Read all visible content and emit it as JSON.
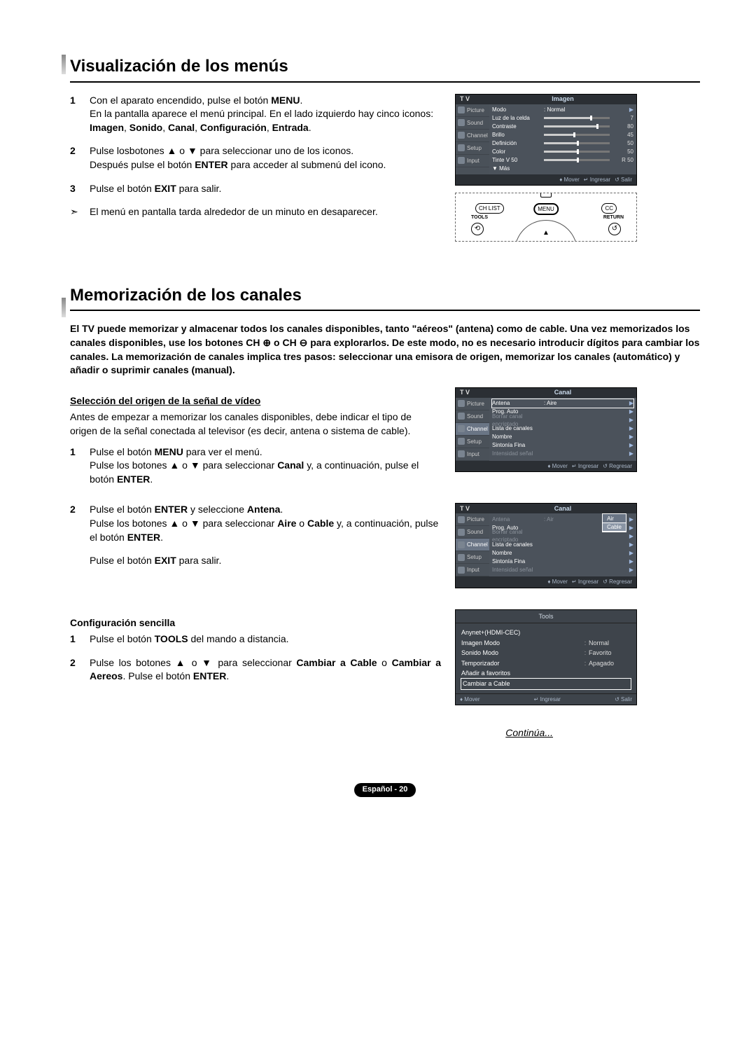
{
  "section1": {
    "title": "Visualización de los menús",
    "steps": [
      {
        "num": "1",
        "html": "Con el aparato encendido, pulse el botón <b>MENU</b>.<br>En la pantalla aparece el menú principal. En el lado izquierdo hay cinco iconos: <b>Imagen</b>, <b>Sonido</b>, <b>Canal</b>, <b>Configuración</b>, <b>Entrada</b>."
      },
      {
        "num": "2",
        "html": "Pulse losbotones ▲ o ▼ para seleccionar uno de los iconos.<br>Después pulse el botón <b>ENTER</b> para acceder al submenú del icono."
      },
      {
        "num": "3",
        "html": "Pulse el botón <b>EXIT</b> para salir."
      }
    ],
    "note": "El menú en pantalla tarda alrededor de un minuto en desaparecer."
  },
  "section2": {
    "title": "Memorización de los canales",
    "intro": "El TV puede memorizar y almacenar todos los canales disponibles, tanto \"aéreos\" (antena) como de cable. Una vez memorizados los canales disponibles, use los botones CH ⊕ o CH ⊖ para explorarlos. De este modo, no es necesario introducir dígitos para cambiar los canales. La memorización de canales implica tres pasos: seleccionar una emisora de origen, memorizar los canales (automático) y añadir o suprimir canales (manual).",
    "subA": {
      "heading": "Selección del origen de la señal de vídeo",
      "p": "Antes de empezar a memorizar los canales disponibles, debe indicar el tipo de origen de la señal conectada al televisor (es decir, antena o sistema de cable).",
      "steps": [
        {
          "num": "1",
          "html": "Pulse el botón <b>MENU</b> para ver el menú.<br>Pulse los botones ▲ o ▼ para seleccionar <b>Canal</b> y, a continuación, pulse el botón <b>ENTER</b>."
        },
        {
          "num": "2",
          "html": "Pulse el botón <b>ENTER</b> y seleccione <b>Antena</b>.<br>Pulse los botones ▲ o ▼ para seleccionar <b>Aire</b> o <b>Cable</b> y, a continuación, pulse el botón <b>ENTER</b>."
        }
      ],
      "exit": "Pulse el botón <b>EXIT</b> para salir."
    },
    "subB": {
      "heading": "Configuración sencilla",
      "steps": [
        {
          "num": "1",
          "html": "Pulse el botón <b>TOOLS</b> del mando a distancia."
        },
        {
          "num": "2",
          "html": "Pulse los botones ▲ o ▼ para seleccionar <b>Cambiar a Cable</b> o <b>Cambiar a Aereos</b>. Pulse el botón <b>ENTER</b>."
        }
      ]
    }
  },
  "continue": "Continúa...",
  "page": "Español - 20",
  "osd_imagen": {
    "tv": "T V",
    "title": "Imagen",
    "sidebar": [
      "Picture",
      "Sound",
      "Channel",
      "Setup",
      "Input"
    ],
    "rows": [
      {
        "label": "Modo",
        "value": ": Normal",
        "type": "text"
      },
      {
        "label": "Luz de la celda",
        "value": "7",
        "type": "slider",
        "pct": 70
      },
      {
        "label": "Contraste",
        "value": "80",
        "type": "slider",
        "pct": 80
      },
      {
        "label": "Brillo",
        "value": "45",
        "type": "slider",
        "pct": 45
      },
      {
        "label": "Definición",
        "value": "50",
        "type": "slider",
        "pct": 50
      },
      {
        "label": "Color",
        "value": "50",
        "type": "slider",
        "pct": 50
      },
      {
        "label": "Tinte      V 50",
        "value": "R 50",
        "type": "slider",
        "pct": 50
      },
      {
        "label": "▼ Más",
        "type": "more"
      }
    ],
    "footer": [
      "♦ Mover",
      "↵ Ingresar",
      "↺ Salir"
    ]
  },
  "osd_canal1": {
    "tv": "T V",
    "title": "Canal",
    "sidebar": [
      "Picture",
      "Sound",
      "Channel",
      "Setup",
      "Input"
    ],
    "active": 2,
    "rows": [
      {
        "label": "Antena",
        "value": ": Aire",
        "selected": true
      },
      {
        "label": "Prog. Auto"
      },
      {
        "label": "Borrar canal encriptado",
        "dim": true
      },
      {
        "label": "Lista de canales"
      },
      {
        "label": "Nombre"
      },
      {
        "label": "Sintonía Fina"
      },
      {
        "label": "Intensidad señal",
        "dim": true
      }
    ],
    "footer": [
      "♦ Mover",
      "↵ Ingresar",
      "↺ Regresar"
    ]
  },
  "osd_canal2": {
    "tv": "T V",
    "title": "Canal",
    "sidebar": [
      "Picture",
      "Sound",
      "Channel",
      "Setup",
      "Input"
    ],
    "active": 2,
    "rows": [
      {
        "label": "Antena",
        "value": ": Air",
        "dim": true,
        "dropdown": [
          "Air",
          "Cable"
        ],
        "dropdown_sel": 1
      },
      {
        "label": "Prog. Auto"
      },
      {
        "label": "Borrar canal encriptado",
        "dim": true
      },
      {
        "label": "Lista de canales"
      },
      {
        "label": "Nombre"
      },
      {
        "label": "Sintonía Fina"
      },
      {
        "label": "Intensidad señal",
        "dim": true
      }
    ],
    "footer": [
      "♦ Mover",
      "↵ Ingresar",
      "↺ Regresar"
    ]
  },
  "remote": {
    "chlist": "CH LIST",
    "menu": "MENU",
    "cc": "CC",
    "tools": "TOOLS",
    "return": "RETURN"
  },
  "tools": {
    "title": "Tools",
    "rows": [
      {
        "label": "Anynet+(HDMI-CEC)"
      },
      {
        "label": "Imagen Modo",
        "val": "Normal"
      },
      {
        "label": "Sonido Modo",
        "val": "Favorito"
      },
      {
        "label": "Temporizador",
        "val": "Apagado"
      },
      {
        "label": "Añadir a favoritos"
      },
      {
        "label": "Cambiar a Cable",
        "outlined": true
      }
    ],
    "footer": [
      "♦ Mover",
      "↵ Ingresar",
      "↺ Salir"
    ]
  }
}
